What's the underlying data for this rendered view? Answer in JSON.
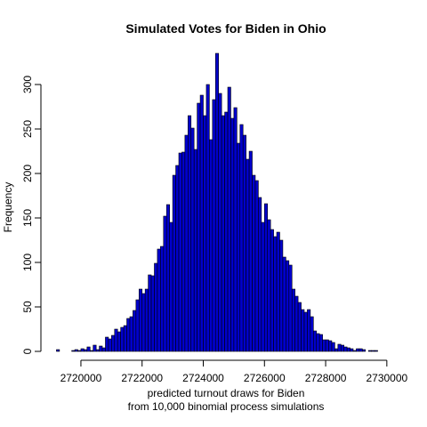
{
  "chart_data": {
    "type": "bar",
    "title": "Simulated Votes for Biden in Ohio",
    "xlabel": "predicted turnout draws for Biden",
    "xlabel_line2": "from 10,000 binomial process simulations",
    "ylabel": "Frequency",
    "xlim": [
      2719100,
      2730150
    ],
    "ylim": [
      0,
      335
    ],
    "x_ticks": [
      2720000,
      2722000,
      2724000,
      2726000,
      2728000,
      2730000
    ],
    "y_ticks": [
      0,
      50,
      100,
      150,
      200,
      250,
      300
    ],
    "bar_color": "#0000cc",
    "bin_width": 100,
    "bins_start": 2719200,
    "values": [
      2,
      0,
      0,
      0,
      0,
      1,
      2,
      1,
      3,
      2,
      5,
      1,
      7,
      2,
      6,
      4,
      16,
      14,
      18,
      25,
      22,
      27,
      29,
      37,
      39,
      46,
      58,
      70,
      65,
      70,
      86,
      85,
      99,
      115,
      118,
      152,
      165,
      145,
      198,
      209,
      223,
      224,
      243,
      265,
      251,
      227,
      279,
      288,
      265,
      300,
      238,
      283,
      335,
      290,
      265,
      269,
      297,
      262,
      274,
      234,
      255,
      243,
      216,
      225,
      198,
      192,
      173,
      145,
      166,
      148,
      137,
      129,
      134,
      125,
      106,
      102,
      97,
      70,
      62,
      55,
      47,
      44,
      47,
      39,
      23,
      20,
      19,
      13,
      13,
      12,
      10,
      3,
      8,
      7,
      5,
      4,
      3,
      1,
      3,
      3,
      2,
      0,
      1,
      1,
      1,
      0,
      0,
      0,
      0,
      0
    ]
  }
}
